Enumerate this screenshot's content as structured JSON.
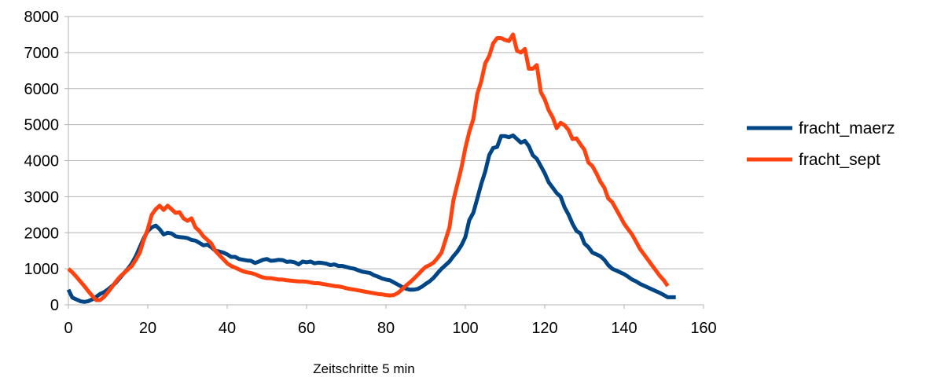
{
  "chart_data": {
    "type": "line",
    "title": "",
    "xlabel": "Zeitschritte 5 min",
    "ylabel": "",
    "xlim": [
      0,
      160
    ],
    "ylim": [
      0,
      8000
    ],
    "xticks": [
      0,
      20,
      40,
      60,
      80,
      100,
      120,
      140,
      160
    ],
    "yticks": [
      0,
      1000,
      2000,
      3000,
      4000,
      5000,
      6000,
      7000,
      8000
    ],
    "grid": "horizontal",
    "legend_position": "right",
    "series": [
      {
        "name": "fracht_maerz",
        "color": "#004586",
        "points": [
          [
            0,
            420
          ],
          [
            1,
            200
          ],
          [
            2,
            150
          ],
          [
            3,
            100
          ],
          [
            4,
            80
          ],
          [
            5,
            100
          ],
          [
            6,
            150
          ],
          [
            7,
            220
          ],
          [
            8,
            300
          ],
          [
            9,
            350
          ],
          [
            10,
            430
          ],
          [
            11,
            520
          ],
          [
            12,
            620
          ],
          [
            13,
            750
          ],
          [
            14,
            880
          ],
          [
            15,
            1000
          ],
          [
            16,
            1150
          ],
          [
            17,
            1350
          ],
          [
            18,
            1600
          ],
          [
            19,
            1850
          ],
          [
            20,
            2050
          ],
          [
            21,
            2150
          ],
          [
            22,
            2200
          ],
          [
            23,
            2100
          ],
          [
            24,
            1950
          ],
          [
            25,
            2000
          ],
          [
            26,
            1980
          ],
          [
            27,
            1900
          ],
          [
            28,
            1880
          ],
          [
            29,
            1870
          ],
          [
            30,
            1850
          ],
          [
            31,
            1800
          ],
          [
            32,
            1780
          ],
          [
            33,
            1720
          ],
          [
            34,
            1650
          ],
          [
            35,
            1670
          ],
          [
            36,
            1600
          ],
          [
            37,
            1500
          ],
          [
            38,
            1480
          ],
          [
            39,
            1450
          ],
          [
            40,
            1400
          ],
          [
            41,
            1330
          ],
          [
            42,
            1330
          ],
          [
            43,
            1270
          ],
          [
            44,
            1250
          ],
          [
            45,
            1230
          ],
          [
            46,
            1220
          ],
          [
            47,
            1160
          ],
          [
            48,
            1200
          ],
          [
            49,
            1250
          ],
          [
            50,
            1270
          ],
          [
            51,
            1220
          ],
          [
            52,
            1230
          ],
          [
            53,
            1250
          ],
          [
            54,
            1240
          ],
          [
            55,
            1190
          ],
          [
            56,
            1200
          ],
          [
            57,
            1180
          ],
          [
            58,
            1120
          ],
          [
            59,
            1200
          ],
          [
            60,
            1180
          ],
          [
            61,
            1200
          ],
          [
            62,
            1150
          ],
          [
            63,
            1170
          ],
          [
            64,
            1160
          ],
          [
            65,
            1140
          ],
          [
            66,
            1100
          ],
          [
            67,
            1120
          ],
          [
            68,
            1080
          ],
          [
            69,
            1080
          ],
          [
            70,
            1050
          ],
          [
            71,
            1020
          ],
          [
            72,
            1000
          ],
          [
            73,
            960
          ],
          [
            74,
            920
          ],
          [
            75,
            900
          ],
          [
            76,
            880
          ],
          [
            77,
            820
          ],
          [
            78,
            780
          ],
          [
            79,
            730
          ],
          [
            80,
            700
          ],
          [
            81,
            680
          ],
          [
            82,
            620
          ],
          [
            83,
            560
          ],
          [
            84,
            500
          ],
          [
            85,
            450
          ],
          [
            86,
            420
          ],
          [
            87,
            420
          ],
          [
            88,
            440
          ],
          [
            89,
            500
          ],
          [
            90,
            580
          ],
          [
            91,
            650
          ],
          [
            92,
            750
          ],
          [
            93,
            880
          ],
          [
            94,
            1000
          ],
          [
            95,
            1100
          ],
          [
            96,
            1200
          ],
          [
            97,
            1350
          ],
          [
            98,
            1480
          ],
          [
            99,
            1650
          ],
          [
            100,
            1880
          ],
          [
            101,
            2350
          ],
          [
            102,
            2550
          ],
          [
            103,
            2950
          ],
          [
            104,
            3350
          ],
          [
            105,
            3700
          ],
          [
            106,
            4150
          ],
          [
            107,
            4350
          ],
          [
            108,
            4380
          ],
          [
            109,
            4680
          ],
          [
            110,
            4680
          ],
          [
            111,
            4650
          ],
          [
            112,
            4700
          ],
          [
            113,
            4600
          ],
          [
            114,
            4500
          ],
          [
            115,
            4550
          ],
          [
            116,
            4400
          ],
          [
            117,
            4150
          ],
          [
            118,
            4050
          ],
          [
            119,
            3850
          ],
          [
            120,
            3650
          ],
          [
            121,
            3400
          ],
          [
            122,
            3250
          ],
          [
            123,
            3100
          ],
          [
            124,
            3000
          ],
          [
            125,
            2700
          ],
          [
            126,
            2500
          ],
          [
            127,
            2250
          ],
          [
            128,
            2050
          ],
          [
            129,
            1980
          ],
          [
            130,
            1700
          ],
          [
            131,
            1600
          ],
          [
            132,
            1450
          ],
          [
            133,
            1400
          ],
          [
            134,
            1350
          ],
          [
            135,
            1250
          ],
          [
            136,
            1100
          ],
          [
            137,
            1000
          ],
          [
            138,
            950
          ],
          [
            139,
            900
          ],
          [
            140,
            850
          ],
          [
            141,
            780
          ],
          [
            142,
            700
          ],
          [
            143,
            650
          ],
          [
            144,
            580
          ],
          [
            145,
            530
          ],
          [
            146,
            480
          ],
          [
            147,
            430
          ],
          [
            148,
            380
          ],
          [
            149,
            330
          ],
          [
            150,
            270
          ],
          [
            151,
            210
          ],
          [
            152,
            210
          ],
          [
            153,
            210
          ]
        ]
      },
      {
        "name": "fracht_sept",
        "color": "#ff420e",
        "points": [
          [
            0,
            1000
          ],
          [
            1,
            900
          ],
          [
            2,
            780
          ],
          [
            3,
            650
          ],
          [
            4,
            520
          ],
          [
            5,
            380
          ],
          [
            6,
            250
          ],
          [
            7,
            130
          ],
          [
            8,
            130
          ],
          [
            9,
            220
          ],
          [
            10,
            350
          ],
          [
            11,
            500
          ],
          [
            12,
            650
          ],
          [
            13,
            780
          ],
          [
            14,
            880
          ],
          [
            15,
            980
          ],
          [
            16,
            1080
          ],
          [
            17,
            1250
          ],
          [
            18,
            1450
          ],
          [
            19,
            1800
          ],
          [
            20,
            2100
          ],
          [
            21,
            2500
          ],
          [
            22,
            2650
          ],
          [
            23,
            2750
          ],
          [
            24,
            2630
          ],
          [
            25,
            2750
          ],
          [
            26,
            2650
          ],
          [
            27,
            2550
          ],
          [
            28,
            2570
          ],
          [
            29,
            2400
          ],
          [
            30,
            2330
          ],
          [
            31,
            2400
          ],
          [
            32,
            2150
          ],
          [
            33,
            2050
          ],
          [
            34,
            1900
          ],
          [
            35,
            1800
          ],
          [
            36,
            1700
          ],
          [
            37,
            1500
          ],
          [
            38,
            1380
          ],
          [
            39,
            1270
          ],
          [
            40,
            1150
          ],
          [
            41,
            1080
          ],
          [
            42,
            1030
          ],
          [
            43,
            980
          ],
          [
            44,
            930
          ],
          [
            45,
            900
          ],
          [
            46,
            880
          ],
          [
            47,
            850
          ],
          [
            48,
            800
          ],
          [
            49,
            760
          ],
          [
            50,
            740
          ],
          [
            51,
            740
          ],
          [
            52,
            720
          ],
          [
            53,
            700
          ],
          [
            54,
            700
          ],
          [
            55,
            680
          ],
          [
            56,
            670
          ],
          [
            57,
            660
          ],
          [
            58,
            650
          ],
          [
            59,
            650
          ],
          [
            60,
            640
          ],
          [
            61,
            620
          ],
          [
            62,
            600
          ],
          [
            63,
            600
          ],
          [
            64,
            580
          ],
          [
            65,
            560
          ],
          [
            66,
            540
          ],
          [
            67,
            520
          ],
          [
            68,
            510
          ],
          [
            69,
            490
          ],
          [
            70,
            460
          ],
          [
            71,
            440
          ],
          [
            72,
            420
          ],
          [
            73,
            400
          ],
          [
            74,
            380
          ],
          [
            75,
            360
          ],
          [
            76,
            340
          ],
          [
            77,
            320
          ],
          [
            78,
            300
          ],
          [
            79,
            290
          ],
          [
            80,
            270
          ],
          [
            81,
            260
          ],
          [
            82,
            270
          ],
          [
            83,
            330
          ],
          [
            84,
            420
          ],
          [
            85,
            530
          ],
          [
            86,
            620
          ],
          [
            87,
            720
          ],
          [
            88,
            830
          ],
          [
            89,
            950
          ],
          [
            90,
            1050
          ],
          [
            91,
            1100
          ],
          [
            92,
            1170
          ],
          [
            93,
            1300
          ],
          [
            94,
            1450
          ],
          [
            95,
            1800
          ],
          [
            96,
            2150
          ],
          [
            97,
            2900
          ],
          [
            98,
            3350
          ],
          [
            99,
            3800
          ],
          [
            100,
            4350
          ],
          [
            101,
            4800
          ],
          [
            102,
            5150
          ],
          [
            103,
            5850
          ],
          [
            104,
            6200
          ],
          [
            105,
            6700
          ],
          [
            106,
            6900
          ],
          [
            107,
            7250
          ],
          [
            108,
            7400
          ],
          [
            109,
            7400
          ],
          [
            110,
            7350
          ],
          [
            111,
            7320
          ],
          [
            112,
            7500
          ],
          [
            113,
            7050
          ],
          [
            114,
            7000
          ],
          [
            115,
            7100
          ],
          [
            116,
            6550
          ],
          [
            117,
            6550
          ],
          [
            118,
            6650
          ],
          [
            119,
            5900
          ],
          [
            120,
            5700
          ],
          [
            121,
            5400
          ],
          [
            122,
            5200
          ],
          [
            123,
            4900
          ],
          [
            124,
            5050
          ],
          [
            125,
            4980
          ],
          [
            126,
            4850
          ],
          [
            127,
            4600
          ],
          [
            128,
            4620
          ],
          [
            129,
            4450
          ],
          [
            130,
            4300
          ],
          [
            131,
            3950
          ],
          [
            132,
            3850
          ],
          [
            133,
            3650
          ],
          [
            134,
            3420
          ],
          [
            135,
            3250
          ],
          [
            136,
            2950
          ],
          [
            137,
            2850
          ],
          [
            138,
            2650
          ],
          [
            139,
            2450
          ],
          [
            140,
            2250
          ],
          [
            141,
            2100
          ],
          [
            142,
            1950
          ],
          [
            143,
            1750
          ],
          [
            144,
            1550
          ],
          [
            145,
            1400
          ],
          [
            146,
            1250
          ],
          [
            147,
            1100
          ],
          [
            148,
            950
          ],
          [
            149,
            800
          ],
          [
            150,
            680
          ],
          [
            151,
            520
          ]
        ]
      }
    ]
  }
}
